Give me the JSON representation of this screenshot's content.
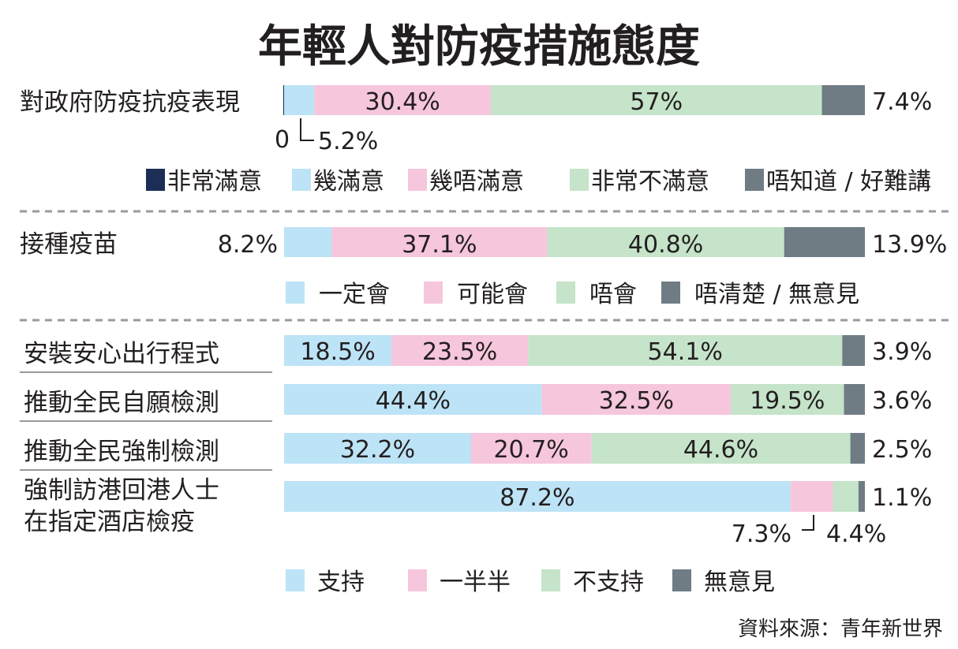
{
  "title": "年輕人對防疫措施態度",
  "source": "資料來源：青年新世界",
  "colors": {
    "very": "#1c2d56",
    "blue": "#bde3f6",
    "pink": "#f6c6dc",
    "green": "#c5e4c9",
    "gray": "#6f7c84",
    "text": "#231f20",
    "divider": "#9a9a9a"
  },
  "chart_data": [
    {
      "type": "bar",
      "orientation": "horizontal-stacked",
      "title": "",
      "categories": [
        "對政府防疫抗疫表現"
      ],
      "series": [
        {
          "name": "非常滿意",
          "values": [
            0
          ]
        },
        {
          "name": "幾滿意",
          "values": [
            5.2
          ]
        },
        {
          "name": "幾唔滿意",
          "values": [
            30.4
          ]
        },
        {
          "name": "非常不滿意",
          "values": [
            57
          ]
        },
        {
          "name": "唔知道 / 好難講",
          "values": [
            7.4
          ]
        }
      ],
      "value_labels": [
        [
          "0",
          "5.2%",
          "30.4%",
          "57%",
          "7.4%"
        ]
      ],
      "legend": [
        "非常滿意",
        "幾滿意",
        "幾唔滿意",
        "非常不滿意",
        "唔知道 / 好難講"
      ]
    },
    {
      "type": "bar",
      "orientation": "horizontal-stacked",
      "title": "",
      "categories": [
        "接種疫苗"
      ],
      "series": [
        {
          "name": "一定會",
          "values": [
            8.2
          ]
        },
        {
          "name": "可能會",
          "values": [
            37.1
          ]
        },
        {
          "name": "唔會",
          "values": [
            40.8
          ]
        },
        {
          "name": "唔清楚 / 無意見",
          "values": [
            13.9
          ]
        }
      ],
      "value_labels": [
        [
          "8.2%",
          "37.1%",
          "40.8%",
          "13.9%"
        ]
      ],
      "legend": [
        "一定會",
        "可能會",
        "唔會",
        "唔清楚 / 無意見"
      ]
    },
    {
      "type": "bar",
      "orientation": "horizontal-stacked",
      "title": "",
      "categories": [
        "安裝安心出行程式",
        "推動全民自願檢測",
        "推動全民強制檢測",
        "強制訪港回港人士在指定酒店檢疫"
      ],
      "category_lines": [
        [
          "安裝安心出行程式"
        ],
        [
          "推動全民自願檢測"
        ],
        [
          "推動全民強制檢測"
        ],
        [
          "強制訪港回港人士",
          "在指定酒店檢疫"
        ]
      ],
      "series": [
        {
          "name": "支持",
          "values": [
            18.5,
            44.4,
            32.2,
            87.2
          ]
        },
        {
          "name": "一半半",
          "values": [
            23.5,
            32.5,
            20.7,
            7.3
          ]
        },
        {
          "name": "不支持",
          "values": [
            54.1,
            19.5,
            44.6,
            4.4
          ]
        },
        {
          "name": "無意見",
          "values": [
            3.9,
            3.6,
            2.5,
            1.1
          ]
        }
      ],
      "value_labels": [
        [
          "18.5%",
          "23.5%",
          "54.1%",
          "3.9%"
        ],
        [
          "44.4%",
          "32.5%",
          "19.5%",
          "3.6%"
        ],
        [
          "32.2%",
          "20.7%",
          "44.6%",
          "2.5%"
        ],
        [
          "87.2%",
          "7.3%",
          "4.4%",
          "1.1%"
        ]
      ],
      "legend": [
        "支持",
        "一半半",
        "不支持",
        "無意見"
      ]
    }
  ]
}
